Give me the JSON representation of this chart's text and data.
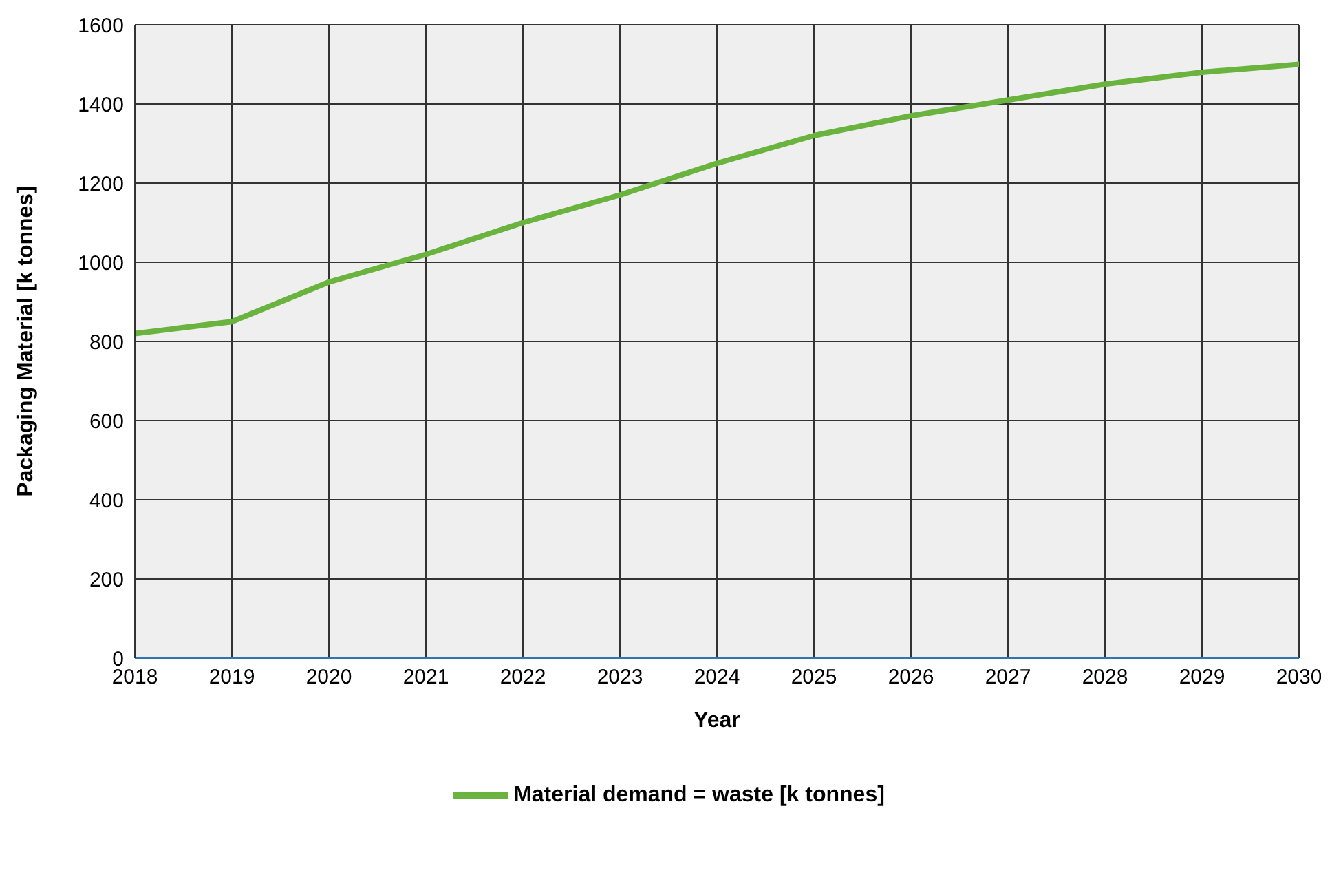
{
  "chart_data": {
    "type": "line",
    "xlabel": "Year",
    "ylabel": "Packaging Material [k tonnes]",
    "x": [
      2018,
      2019,
      2020,
      2021,
      2022,
      2023,
      2024,
      2025,
      2026,
      2027,
      2028,
      2029,
      2030
    ],
    "series": [
      {
        "name": "Material demand = waste [k tonnes]",
        "color": "#6ab33e",
        "values": [
          820,
          850,
          950,
          1020,
          1100,
          1170,
          1250,
          1320,
          1370,
          1410,
          1450,
          1480,
          1500
        ]
      }
    ],
    "xlim": [
      2018,
      2030
    ],
    "xticks": [
      2018,
      2019,
      2020,
      2021,
      2022,
      2023,
      2024,
      2025,
      2026,
      2027,
      2028,
      2029,
      2030
    ],
    "ylim": [
      0,
      1600
    ],
    "yticks": [
      0,
      200,
      400,
      600,
      800,
      1000,
      1200,
      1400,
      1600
    ],
    "grid": true,
    "legend": "bottom",
    "marker": "none",
    "line_style": "solid"
  }
}
